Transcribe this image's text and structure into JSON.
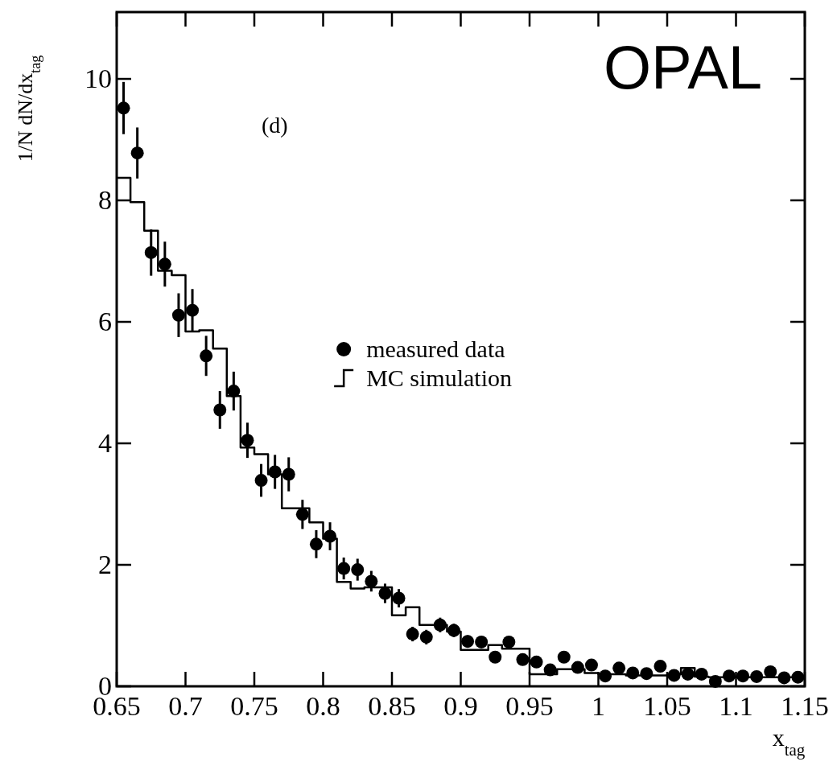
{
  "chart_data": {
    "type": "scatter",
    "xlabel": "x$_{tag}$",
    "ylabel": "1/N dN/dx$_{tag}$",
    "annotations": [
      "(d)",
      "OPAL"
    ],
    "xlim": [
      0.65,
      1.15
    ],
    "ylim": [
      0,
      11.1
    ],
    "xticks": [
      0.65,
      0.7,
      0.75,
      0.8,
      0.85,
      0.9,
      0.95,
      1,
      1.05,
      1.1,
      1.15
    ],
    "yticks": [
      0,
      2,
      4,
      6,
      8,
      10
    ],
    "legend": "center",
    "line_style": "solid",
    "series": [
      {
        "name": "measured data",
        "marker": "circle",
        "color": "#000000",
        "x": [
          0.655,
          0.665,
          0.675,
          0.685,
          0.695,
          0.705,
          0.715,
          0.725,
          0.735,
          0.745,
          0.755,
          0.765,
          0.775,
          0.785,
          0.795,
          0.805,
          0.815,
          0.825,
          0.835,
          0.845,
          0.855,
          0.865,
          0.875,
          0.885,
          0.895,
          0.905,
          0.915,
          0.925,
          0.935,
          0.945,
          0.955,
          0.965,
          0.975,
          0.985,
          0.995,
          1.005,
          1.015,
          1.025,
          1.035,
          1.045,
          1.055,
          1.065,
          1.075,
          1.085,
          1.095,
          1.105,
          1.115,
          1.125,
          1.135,
          1.145
        ],
        "values": [
          9.52,
          8.78,
          7.14,
          6.95,
          6.11,
          6.19,
          5.44,
          4.55,
          4.86,
          4.05,
          3.39,
          3.53,
          3.49,
          2.83,
          2.34,
          2.47,
          1.94,
          1.92,
          1.73,
          1.53,
          1.45,
          0.86,
          0.81,
          1.01,
          0.92,
          0.74,
          0.73,
          0.48,
          0.73,
          0.44,
          0.4,
          0.27,
          0.48,
          0.31,
          0.35,
          0.17,
          0.3,
          0.22,
          0.21,
          0.33,
          0.18,
          0.2,
          0.2,
          0.08,
          0.17,
          0.17,
          0.16,
          0.24,
          0.14,
          0.15
        ],
        "errors": [
          0.43,
          0.42,
          0.38,
          0.37,
          0.36,
          0.35,
          0.33,
          0.31,
          0.32,
          0.29,
          0.27,
          0.28,
          0.28,
          0.24,
          0.23,
          0.23,
          0.18,
          0.18,
          0.17,
          0.16,
          0.15,
          0.12,
          0.12,
          0.12,
          0.11,
          0.1,
          null,
          null,
          null,
          null,
          null,
          null,
          null,
          null,
          null,
          null,
          null,
          null,
          null,
          null,
          null,
          null,
          null,
          null,
          null,
          null,
          null,
          null,
          null,
          null
        ]
      },
      {
        "name": "MC simulation",
        "type": "step",
        "color": "#000000",
        "x": [
          0.65,
          0.66,
          0.67,
          0.68,
          0.69,
          0.7,
          0.71,
          0.72,
          0.73,
          0.74,
          0.75,
          0.76,
          0.77,
          0.78,
          0.79,
          0.8,
          0.81,
          0.82,
          0.83,
          0.84,
          0.85,
          0.86,
          0.87,
          0.88,
          0.89,
          0.9,
          0.91,
          0.92,
          0.93,
          0.94,
          0.95,
          0.96,
          0.97,
          0.98,
          0.99,
          1,
          1.01,
          1.02,
          1.03,
          1.04,
          1.05,
          1.06,
          1.07,
          1.08,
          1.09,
          1.1,
          1.11,
          1.12,
          1.13,
          1.14,
          1.15
        ],
        "values": [
          8.37,
          7.97,
          7.5,
          6.84,
          6.77,
          5.84,
          5.86,
          5.56,
          4.78,
          3.93,
          3.82,
          3.49,
          2.93,
          2.93,
          2.7,
          2.43,
          1.72,
          1.61,
          1.63,
          1.63,
          1.17,
          1.3,
          1.01,
          1.01,
          0.9,
          0.6,
          0.6,
          0.68,
          0.62,
          0.62,
          0.2,
          0.2,
          0.28,
          0.28,
          0.22,
          0.2,
          0.2,
          0.18,
          0.18,
          0.18,
          0.2,
          0.3,
          0.16,
          0.15,
          0.15,
          0.15,
          0.15,
          0.15,
          0.15,
          0.15,
          0.15
        ]
      }
    ]
  }
}
